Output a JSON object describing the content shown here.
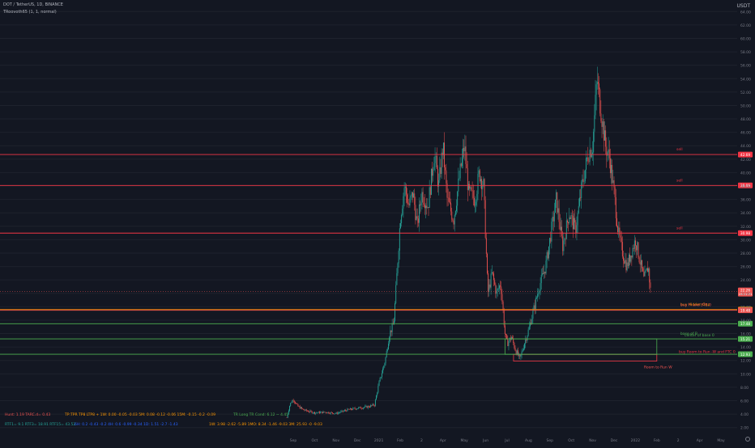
{
  "header": {
    "symbol_line": "DOT / TetherUS, 1D, BINANCE",
    "indicator_line": "TRoovoth65 (1, 1, normal)",
    "currency": "USDT"
  },
  "colors": {
    "background": "#131722",
    "up": "#26a69a",
    "down": "#ef5350",
    "sell_line": "#f23645",
    "buy_line": "#4caf50",
    "grid": "#1e222d",
    "axis_text": "#787b86"
  },
  "chart_data": {
    "type": "candlestick",
    "symbol": "DOT/USDT",
    "timeframe": "1D",
    "exchange": "BINANCE",
    "ylim": [
      1.0,
      65.0
    ],
    "y_ticks": [
      2,
      4,
      6,
      8,
      10,
      12,
      14,
      16,
      18,
      20,
      22,
      24,
      26,
      28,
      30,
      32,
      34,
      36,
      38,
      40,
      42,
      44,
      46,
      48,
      50,
      52,
      54,
      56,
      58,
      60,
      62,
      64
    ],
    "x_ticks": [
      {
        "label": "Sep",
        "t": 0.0
      },
      {
        "label": "Oct",
        "t": 1.0
      },
      {
        "label": "Nov",
        "t": 2.0
      },
      {
        "label": "Dec",
        "t": 3.0
      },
      {
        "label": "2021",
        "t": 4.0
      },
      {
        "label": "Feb",
        "t": 5.0
      },
      {
        "label": "2",
        "t": 6.0
      },
      {
        "label": "Apr",
        "t": 7.0
      },
      {
        "label": "May",
        "t": 8.0
      },
      {
        "label": "Jun",
        "t": 9.0
      },
      {
        "label": "Jul",
        "t": 10.0
      },
      {
        "label": "Aug",
        "t": 11.0
      },
      {
        "label": "Sep",
        "t": 12.0
      },
      {
        "label": "Oct",
        "t": 13.0
      },
      {
        "label": "Nov",
        "t": 14.0
      },
      {
        "label": "Dec",
        "t": 15.0
      },
      {
        "label": "2022",
        "t": 16.0
      },
      {
        "label": "Feb",
        "t": 17.0
      },
      {
        "label": "2",
        "t": 18.0
      },
      {
        "label": "Apr",
        "t": 19.0
      },
      {
        "label": "May",
        "t": 20.0
      }
    ],
    "last_month_t": 16.7,
    "price_path": [
      [
        -0.3,
        3.5
      ],
      [
        -0.15,
        5.5
      ],
      [
        0.0,
        6.2
      ],
      [
        0.2,
        5.2
      ],
      [
        0.5,
        4.6
      ],
      [
        1.0,
        4.2
      ],
      [
        1.5,
        4.3
      ],
      [
        2.0,
        4.1
      ],
      [
        2.5,
        4.6
      ],
      [
        3.0,
        4.9
      ],
      [
        3.5,
        5.1
      ],
      [
        3.8,
        5.4
      ],
      [
        4.0,
        8.5
      ],
      [
        4.3,
        12.0
      ],
      [
        4.5,
        16.0
      ],
      [
        4.7,
        17.5
      ],
      [
        4.85,
        25.0
      ],
      [
        5.0,
        33.0
      ],
      [
        5.2,
        38.0
      ],
      [
        5.4,
        35.0
      ],
      [
        5.6,
        37.0
      ],
      [
        5.8,
        32.0
      ],
      [
        6.0,
        37.0
      ],
      [
        6.3,
        35.0
      ],
      [
        6.6,
        43.0
      ],
      [
        6.8,
        38.0
      ],
      [
        7.0,
        44.0
      ],
      [
        7.2,
        36.0
      ],
      [
        7.5,
        33.0
      ],
      [
        7.8,
        40.0
      ],
      [
        8.0,
        44.0
      ],
      [
        8.2,
        37.0
      ],
      [
        8.5,
        36.0
      ],
      [
        8.7,
        40.0
      ],
      [
        8.9,
        38.0
      ],
      [
        9.1,
        22.0
      ],
      [
        9.3,
        25.0
      ],
      [
        9.5,
        22.0
      ],
      [
        9.7,
        23.5
      ],
      [
        9.9,
        16.0
      ],
      [
        10.0,
        14.5
      ],
      [
        10.2,
        15.5
      ],
      [
        10.4,
        13.5
      ],
      [
        10.6,
        12.2
      ],
      [
        10.8,
        14.5
      ],
      [
        11.0,
        16.5
      ],
      [
        11.2,
        19.0
      ],
      [
        11.5,
        23.0
      ],
      [
        11.8,
        26.0
      ],
      [
        12.0,
        30.0
      ],
      [
        12.3,
        36.0
      ],
      [
        12.6,
        29.0
      ],
      [
        12.9,
        34.0
      ],
      [
        13.2,
        31.5
      ],
      [
        13.5,
        38.0
      ],
      [
        13.8,
        43.0
      ],
      [
        14.0,
        44.0
      ],
      [
        14.2,
        54.0
      ],
      [
        14.4,
        49.0
      ],
      [
        14.6,
        44.0
      ],
      [
        14.8,
        42.0
      ],
      [
        15.0,
        37.0
      ],
      [
        15.2,
        31.0
      ],
      [
        15.4,
        28.0
      ],
      [
        15.6,
        26.0
      ],
      [
        15.8,
        28.0
      ],
      [
        16.0,
        30.0
      ],
      [
        16.2,
        27.0
      ],
      [
        16.4,
        24.0
      ],
      [
        16.6,
        26.0
      ],
      [
        16.7,
        22.5
      ]
    ],
    "horizontal_levels": [
      {
        "label": "sell",
        "price": 42.69,
        "price_label": "42.69",
        "color": "#f23645"
      },
      {
        "label": "sell",
        "price": 38.09,
        "price_label": "38.09",
        "color": "#f23645"
      },
      {
        "label": "sell",
        "price": 30.98,
        "price_label": "30.98",
        "color": "#f23645"
      },
      {
        "label": "buy  Hidden Gap",
        "price": 19.58,
        "price_label": "19.58",
        "color": "#ff9800"
      },
      {
        "label": "buy FI and 3TS 0",
        "price": 19.48,
        "price_label": "19.48",
        "color": "#ef5350"
      },
      {
        "label": "",
        "price": 17.48,
        "price_label": "17.48",
        "color": "#4caf50"
      },
      {
        "label": "base of B",
        "price": 15.21,
        "price_label": "15.21",
        "color": "#4caf50"
      },
      {
        "label": "",
        "price": 12.93,
        "price_label": "12.93",
        "color": "#4caf50"
      }
    ],
    "current_price": {
      "price": 22.26,
      "price_label": "22.26",
      "countdown": "16:21:21"
    },
    "zones": [
      {
        "label": "center of base 0",
        "t_start": 9.9,
        "t_end": 17.0,
        "top": 15.2,
        "bottom": 12.9,
        "color": "#4caf50"
      },
      {
        "label": "buy Room to Run -W and FTC 0",
        "t_start": 10.3,
        "t_end": 17.0,
        "top": 12.9,
        "bottom": 11.9,
        "color": "#f23645"
      }
    ],
    "annotations": [
      {
        "text": "Room to Run W",
        "t": 16.4,
        "price": 10.8,
        "color": "#ef5350"
      }
    ],
    "footer_rows": [
      {
        "text": "Hunt: 1.19  TARC.d= 0.43",
        "color": "#ef5350"
      },
      {
        "text": "TP:TPR  TP8  LTP8 +  1W: 0.00 -0.05 -0.03   5M: 0.08 -0.12 -0.06   15M: -0.15 -0.2 -0.09",
        "color": "#ff9800"
      },
      {
        "text": "TR Long  TR Cond: 6.12 ~ 4.45",
        "color": "#4caf50"
      },
      {
        "text": "RTF1= 9.1  RTF3= 18.91  RTF15= 43.52",
        "color": "#26a69a"
      },
      {
        "text": "6H: 0.2 -0.43 -0.2   4H: 0.6 -0.99 -0.34   1D: 1.51 -2.7 -1.43",
        "color": "#2962ff"
      },
      {
        "text": "1W: 3.98 -2.62 -5.89   1MO: 8.34 -1.46 -9.03   3M: 25.93 -0 -9.03",
        "color": "#ff9800"
      }
    ]
  }
}
